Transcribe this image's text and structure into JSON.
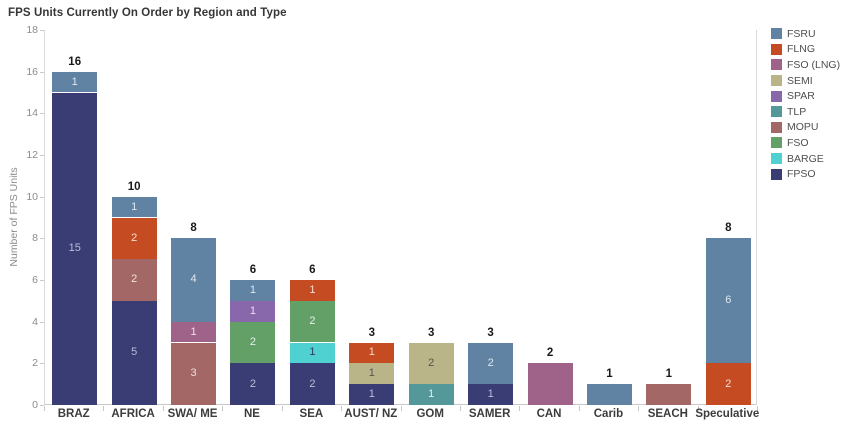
{
  "title": "FPS Units Currently On Order by Region and Type",
  "chart_data": {
    "type": "bar",
    "stacked": true,
    "title": "FPS Units Currently On Order by Region and Type",
    "xlabel": "",
    "ylabel": "Number of FPS Units",
    "ylim": [
      0,
      18
    ],
    "ytick_step": 2,
    "grid": false,
    "legend_position": "right",
    "categories": [
      "BRAZ",
      "AFRICA",
      "SWA/ ME",
      "NE",
      "SEA",
      "AUST/ NZ",
      "GOM",
      "SAMER",
      "CAN",
      "Carib",
      "SEACH",
      "Speculative"
    ],
    "totals": [
      16,
      10,
      8,
      6,
      6,
      3,
      3,
      3,
      2,
      1,
      1,
      8
    ],
    "legend_top_to_bottom": [
      "FSRU",
      "FLNG",
      "FSO (LNG)",
      "SEMI",
      "SPAR",
      "TLP",
      "MOPU",
      "FSO",
      "BARGE",
      "FPSO"
    ],
    "series": [
      {
        "name": "FPSO",
        "color": "#393d73",
        "label_color": "#b9bedb",
        "values": [
          15,
          5,
          0,
          2,
          2,
          1,
          0,
          1,
          0,
          0,
          0,
          0
        ]
      },
      {
        "name": "BARGE",
        "color": "#4fd0d1",
        "label_color": "#2c3a60",
        "values": [
          0,
          0,
          0,
          0,
          1,
          0,
          0,
          0,
          0,
          0,
          0,
          0
        ]
      },
      {
        "name": "FSO",
        "color": "#62a068",
        "label_color": "#e7efe4",
        "values": [
          0,
          0,
          0,
          2,
          2,
          0,
          0,
          0,
          0,
          0,
          0,
          0
        ]
      },
      {
        "name": "MOPU",
        "color": "#a36865",
        "label_color": "#eedfdc",
        "values": [
          0,
          2,
          3,
          0,
          0,
          0,
          0,
          0,
          0,
          0,
          1,
          0
        ]
      },
      {
        "name": "TLP",
        "color": "#559899",
        "label_color": "#e0efef",
        "values": [
          0,
          0,
          0,
          0,
          0,
          0,
          1,
          0,
          0,
          0,
          0,
          0
        ]
      },
      {
        "name": "SPAR",
        "color": "#8868ab",
        "label_color": "#e9dff2",
        "values": [
          0,
          0,
          0,
          1,
          0,
          0,
          0,
          0,
          0,
          0,
          0,
          0
        ]
      },
      {
        "name": "SEMI",
        "color": "#bab588",
        "label_color": "#54544a",
        "values": [
          0,
          0,
          0,
          0,
          0,
          1,
          2,
          0,
          0,
          0,
          0,
          0
        ]
      },
      {
        "name": "FSO (LNG)",
        "color": "#9f6389",
        "label_color": "#f0e1ea",
        "values": [
          0,
          0,
          1,
          0,
          0,
          0,
          0,
          0,
          2,
          0,
          0,
          0
        ]
      },
      {
        "name": "FLNG",
        "color": "#c54c22",
        "label_color": "#f7ded2",
        "values": [
          0,
          2,
          0,
          0,
          1,
          1,
          0,
          0,
          0,
          0,
          0,
          2
        ]
      },
      {
        "name": "FSRU",
        "color": "#6183a3",
        "label_color": "#dfe7ee",
        "values": [
          1,
          1,
          4,
          1,
          0,
          0,
          0,
          2,
          0,
          1,
          0,
          6
        ]
      }
    ]
  },
  "colors": {
    "background": "#ffffff",
    "axis_line": "#c9c9c9",
    "axis_text": "#8c8c8c",
    "category_text": "#3c3c3c",
    "total_label_text": "#191919",
    "title_text": "#363636",
    "legend_text": "#4f4f4f"
  }
}
